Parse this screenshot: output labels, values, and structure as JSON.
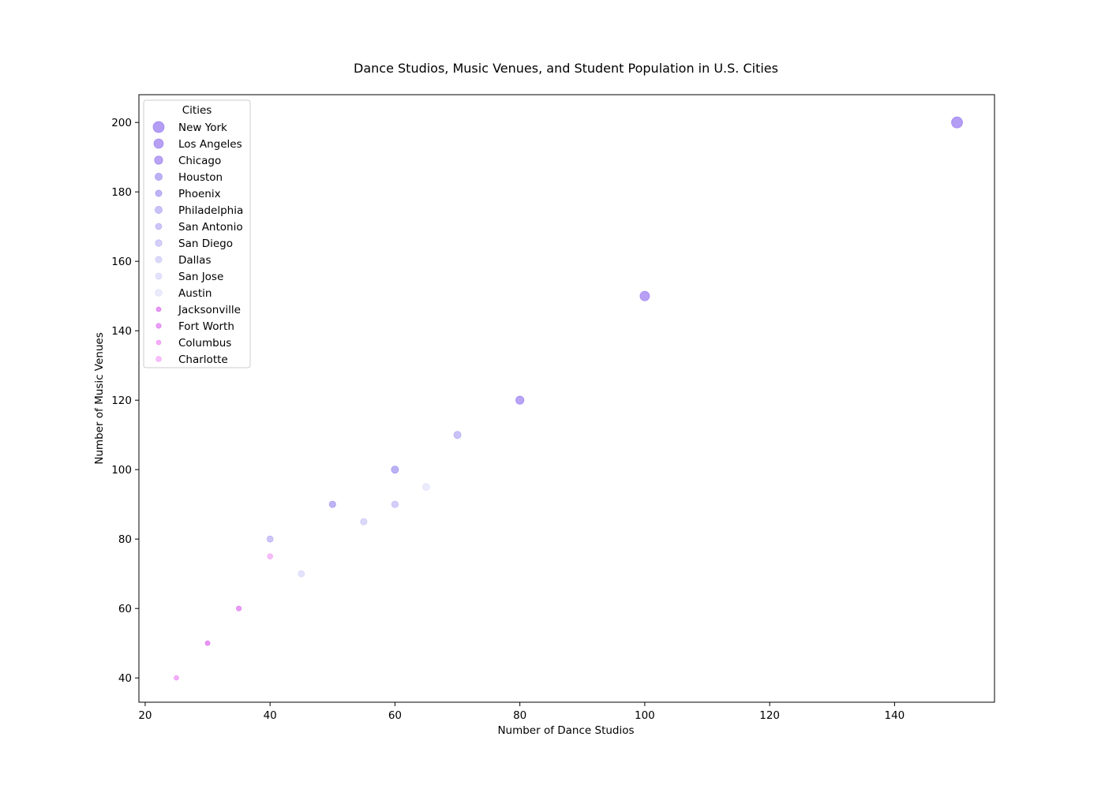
{
  "chart_data": {
    "type": "scatter",
    "title": "Dance Studios, Music Venues, and Student Population in U.S. Cities",
    "xlabel": "Number of Dance Studios",
    "ylabel": "Number of Music Venues",
    "xlim": [
      19,
      156
    ],
    "ylim": [
      33,
      208
    ],
    "xticks": [
      20,
      40,
      60,
      80,
      100,
      120,
      140
    ],
    "yticks": [
      40,
      60,
      80,
      100,
      120,
      140,
      160,
      180,
      200
    ],
    "grid": false,
    "legend": {
      "title": "Cities",
      "placement": "top-left"
    },
    "points": [
      {
        "name": "New York",
        "x": 150,
        "y": 200,
        "color": "#9b7cf0",
        "opacity": 0.75,
        "size": 7.0
      },
      {
        "name": "Los Angeles",
        "x": 100,
        "y": 150,
        "color": "#9b7cf0",
        "opacity": 0.72,
        "size": 6.0
      },
      {
        "name": "Chicago",
        "x": 80,
        "y": 120,
        "color": "#9b7cf0",
        "opacity": 0.7,
        "size": 5.2
      },
      {
        "name": "Houston",
        "x": 60,
        "y": 100,
        "color": "#9b8cf0",
        "opacity": 0.68,
        "size": 4.6
      },
      {
        "name": "Phoenix",
        "x": 50,
        "y": 90,
        "color": "#9b8cf0",
        "opacity": 0.65,
        "size": 4.1
      },
      {
        "name": "Philadelphia",
        "x": 70,
        "y": 110,
        "color": "#a89cf2",
        "opacity": 0.62,
        "size": 4.6
      },
      {
        "name": "San Antonio",
        "x": 40,
        "y": 80,
        "color": "#a89cf2",
        "opacity": 0.58,
        "size": 3.9
      },
      {
        "name": "San Diego",
        "x": 60,
        "y": 90,
        "color": "#b0a8f2",
        "opacity": 0.55,
        "size": 4.2
      },
      {
        "name": "Dallas",
        "x": 55,
        "y": 85,
        "color": "#b8b4f4",
        "opacity": 0.5,
        "size": 4.1
      },
      {
        "name": "San Jose",
        "x": 45,
        "y": 70,
        "color": "#c4c2f6",
        "opacity": 0.45,
        "size": 4.0
      },
      {
        "name": "Austin",
        "x": 65,
        "y": 95,
        "color": "#cfcff8",
        "opacity": 0.42,
        "size": 4.4
      },
      {
        "name": "Jacksonville",
        "x": 30,
        "y": 50,
        "color": "#e07cf0",
        "opacity": 0.8,
        "size": 3.0
      },
      {
        "name": "Fort Worth",
        "x": 35,
        "y": 60,
        "color": "#e07cf0",
        "opacity": 0.75,
        "size": 3.2
      },
      {
        "name": "Columbus",
        "x": 25,
        "y": 40,
        "color": "#ee8cf4",
        "opacity": 0.7,
        "size": 2.9
      },
      {
        "name": "Charlotte",
        "x": 40,
        "y": 75,
        "color": "#f29cf6",
        "opacity": 0.65,
        "size": 3.4
      }
    ]
  }
}
